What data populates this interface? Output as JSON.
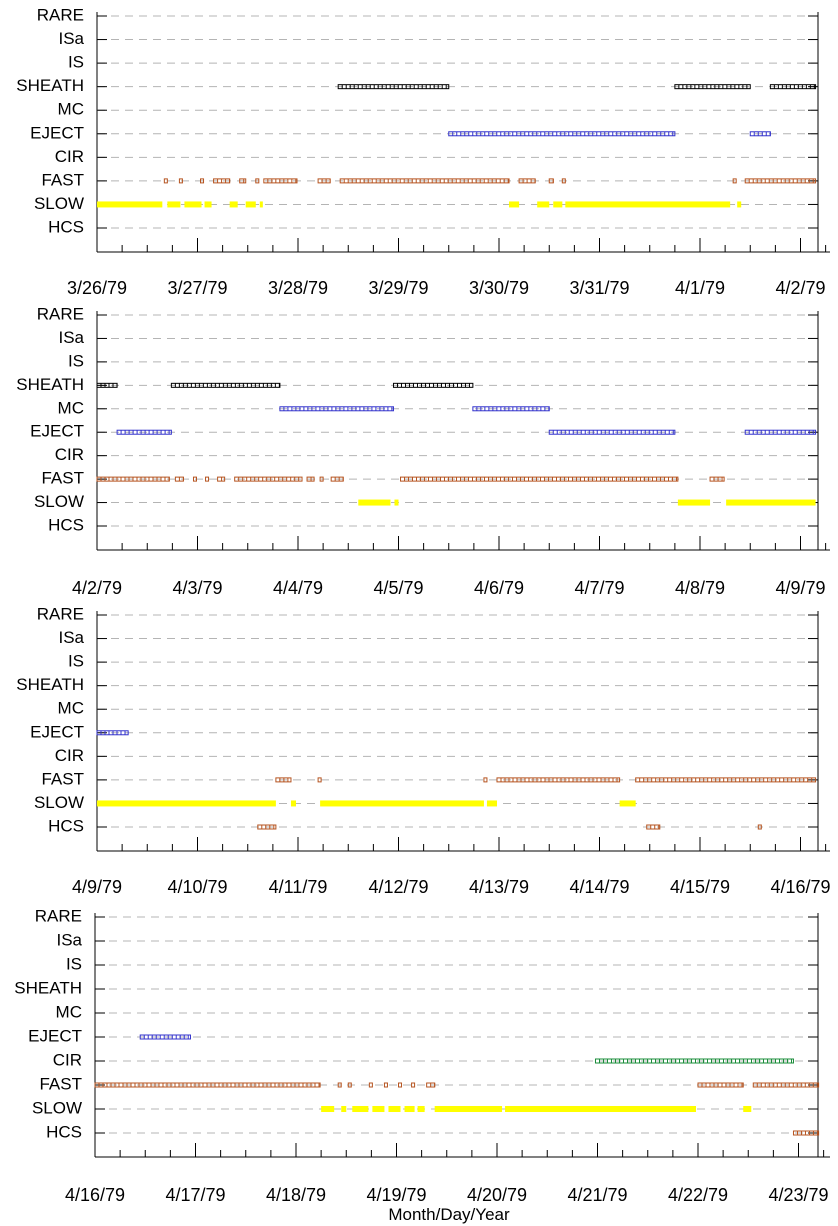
{
  "colors": {
    "SHEATH": "#000000",
    "EJECT": "#3333cc",
    "MC": "#3333cc",
    "FAST": "#b5531f",
    "HCS": "#b5531f",
    "CIR": "#1a8c3a",
    "SLOW": "#ffff00",
    "grid": "#b4b4b4",
    "axis": "#000000"
  },
  "chart_data": {
    "type": "timeline",
    "xlabel": "Month/Day/Year",
    "categories": [
      "RARE",
      "ISa",
      "IS",
      "SHEATH",
      "MC",
      "EJECT",
      "CIR",
      "FAST",
      "SLOW",
      "HCS"
    ],
    "panels": [
      {
        "start": "3/26/79",
        "date_labels": [
          "3/26/79",
          "3/27/79",
          "3/28/79",
          "3/29/79",
          "3/30/79",
          "3/31/79",
          "4/1/79",
          "4/2/79"
        ],
        "intervals": [
          {
            "cat": "SHEATH",
            "from": 2.4,
            "to": 3.5
          },
          {
            "cat": "SHEATH",
            "from": 5.75,
            "to": 6.5
          },
          {
            "cat": "SHEATH",
            "from": 6.7,
            "to": 7.15
          },
          {
            "cat": "EJECT",
            "from": 3.5,
            "to": 5.75
          },
          {
            "cat": "EJECT",
            "from": 6.5,
            "to": 6.7
          },
          {
            "cat": "FAST",
            "from": 0.67,
            "to": 0.69
          },
          {
            "cat": "FAST",
            "from": 0.82,
            "to": 0.84
          },
          {
            "cat": "FAST",
            "from": 1.03,
            "to": 1.06
          },
          {
            "cat": "FAST",
            "from": 1.16,
            "to": 1.32
          },
          {
            "cat": "FAST",
            "from": 1.42,
            "to": 1.48
          },
          {
            "cat": "FAST",
            "from": 1.58,
            "to": 1.61
          },
          {
            "cat": "FAST",
            "from": 1.66,
            "to": 1.99
          },
          {
            "cat": "FAST",
            "from": 2.2,
            "to": 2.32
          },
          {
            "cat": "FAST",
            "from": 2.42,
            "to": 4.1
          },
          {
            "cat": "FAST",
            "from": 4.2,
            "to": 4.36
          },
          {
            "cat": "FAST",
            "from": 4.5,
            "to": 4.54
          },
          {
            "cat": "FAST",
            "from": 4.63,
            "to": 4.66
          },
          {
            "cat": "FAST",
            "from": 6.33,
            "to": 6.36
          },
          {
            "cat": "FAST",
            "from": 6.45,
            "to": 7.15
          },
          {
            "cat": "SLOW",
            "from": 0.0,
            "to": 0.65
          },
          {
            "cat": "SLOW",
            "from": 0.7,
            "to": 0.83
          },
          {
            "cat": "SLOW",
            "from": 0.87,
            "to": 1.04
          },
          {
            "cat": "SLOW",
            "from": 1.07,
            "to": 1.14
          },
          {
            "cat": "SLOW",
            "from": 1.32,
            "to": 1.4
          },
          {
            "cat": "SLOW",
            "from": 1.48,
            "to": 1.58
          },
          {
            "cat": "SLOW",
            "from": 1.62,
            "to": 1.65
          },
          {
            "cat": "SLOW",
            "from": 4.1,
            "to": 4.2
          },
          {
            "cat": "SLOW",
            "from": 4.38,
            "to": 4.5
          },
          {
            "cat": "SLOW",
            "from": 4.54,
            "to": 4.63
          },
          {
            "cat": "SLOW",
            "from": 4.66,
            "to": 6.3
          },
          {
            "cat": "SLOW",
            "from": 6.37,
            "to": 6.41
          }
        ]
      },
      {
        "start": "4/2/79",
        "date_labels": [
          "4/2/79",
          "4/3/79",
          "4/4/79",
          "4/5/79",
          "4/6/79",
          "4/7/79",
          "4/8/79",
          "4/9/79"
        ],
        "intervals": [
          {
            "cat": "SHEATH",
            "from": 0.0,
            "to": 0.2
          },
          {
            "cat": "SHEATH",
            "from": 0.74,
            "to": 1.82
          },
          {
            "cat": "SHEATH",
            "from": 2.95,
            "to": 3.74
          },
          {
            "cat": "MC",
            "from": 1.82,
            "to": 2.95
          },
          {
            "cat": "MC",
            "from": 3.74,
            "to": 4.5
          },
          {
            "cat": "EJECT",
            "from": 0.2,
            "to": 0.74
          },
          {
            "cat": "EJECT",
            "from": 4.5,
            "to": 5.75
          },
          {
            "cat": "EJECT",
            "from": 6.45,
            "to": 7.15
          },
          {
            "cat": "FAST",
            "from": 0.0,
            "to": 0.72
          },
          {
            "cat": "FAST",
            "from": 0.78,
            "to": 0.86
          },
          {
            "cat": "FAST",
            "from": 0.96,
            "to": 0.99
          },
          {
            "cat": "FAST",
            "from": 1.08,
            "to": 1.11
          },
          {
            "cat": "FAST",
            "from": 1.2,
            "to": 1.27
          },
          {
            "cat": "FAST",
            "from": 1.37,
            "to": 2.04
          },
          {
            "cat": "FAST",
            "from": 2.09,
            "to": 2.16
          },
          {
            "cat": "FAST",
            "from": 2.22,
            "to": 2.25
          },
          {
            "cat": "FAST",
            "from": 2.33,
            "to": 2.45
          },
          {
            "cat": "FAST",
            "from": 3.02,
            "to": 5.78
          },
          {
            "cat": "FAST",
            "from": 6.1,
            "to": 6.24
          },
          {
            "cat": "SLOW",
            "from": 2.6,
            "to": 2.92
          },
          {
            "cat": "SLOW",
            "from": 2.96,
            "to": 3.0
          },
          {
            "cat": "SLOW",
            "from": 5.78,
            "to": 6.1
          },
          {
            "cat": "SLOW",
            "from": 6.26,
            "to": 7.15
          }
        ]
      },
      {
        "start": "4/9/79",
        "date_labels": [
          "4/9/79",
          "4/10/79",
          "4/11/79",
          "4/12/79",
          "4/13/79",
          "4/14/79",
          "4/15/79",
          "4/16/79"
        ],
        "intervals": [
          {
            "cat": "EJECT",
            "from": 0.0,
            "to": 0.31
          },
          {
            "cat": "FAST",
            "from": 1.78,
            "to": 1.93
          },
          {
            "cat": "FAST",
            "from": 2.2,
            "to": 2.23
          },
          {
            "cat": "FAST",
            "from": 3.85,
            "to": 3.88
          },
          {
            "cat": "FAST",
            "from": 3.98,
            "to": 5.2
          },
          {
            "cat": "FAST",
            "from": 5.36,
            "to": 7.15
          },
          {
            "cat": "SLOW",
            "from": 0.0,
            "to": 1.78
          },
          {
            "cat": "SLOW",
            "from": 1.93,
            "to": 1.98
          },
          {
            "cat": "SLOW",
            "from": 2.22,
            "to": 3.85
          },
          {
            "cat": "SLOW",
            "from": 3.88,
            "to": 3.98
          },
          {
            "cat": "SLOW",
            "from": 5.2,
            "to": 5.36
          },
          {
            "cat": "HCS",
            "from": 1.6,
            "to": 1.78
          },
          {
            "cat": "HCS",
            "from": 5.47,
            "to": 5.6
          },
          {
            "cat": "HCS",
            "from": 6.58,
            "to": 6.61
          }
        ]
      },
      {
        "start": "4/16/79",
        "date_labels": [
          "4/16/79",
          "4/17/79",
          "4/18/79",
          "4/19/79",
          "4/20/79",
          "4/21/79",
          "4/22/79",
          "4/23/79"
        ],
        "intervals": [
          {
            "cat": "EJECT",
            "from": 0.45,
            "to": 0.95
          },
          {
            "cat": "CIR",
            "from": 4.98,
            "to": 6.95
          },
          {
            "cat": "FAST",
            "from": 0.0,
            "to": 2.24
          },
          {
            "cat": "FAST",
            "from": 2.42,
            "to": 2.45
          },
          {
            "cat": "FAST",
            "from": 2.52,
            "to": 2.55
          },
          {
            "cat": "FAST",
            "from": 2.73,
            "to": 2.76
          },
          {
            "cat": "FAST",
            "from": 2.88,
            "to": 2.91
          },
          {
            "cat": "FAST",
            "from": 3.02,
            "to": 3.05
          },
          {
            "cat": "FAST",
            "from": 3.15,
            "to": 3.18
          },
          {
            "cat": "FAST",
            "from": 3.3,
            "to": 3.38
          },
          {
            "cat": "FAST",
            "from": 6.0,
            "to": 6.45
          },
          {
            "cat": "FAST",
            "from": 6.55,
            "to": 7.2
          },
          {
            "cat": "SLOW",
            "from": 2.25,
            "to": 2.38
          },
          {
            "cat": "SLOW",
            "from": 2.45,
            "to": 2.5
          },
          {
            "cat": "SLOW",
            "from": 2.56,
            "to": 2.72
          },
          {
            "cat": "SLOW",
            "from": 2.76,
            "to": 2.88
          },
          {
            "cat": "SLOW",
            "from": 2.92,
            "to": 3.04
          },
          {
            "cat": "SLOW",
            "from": 3.08,
            "to": 3.18
          },
          {
            "cat": "SLOW",
            "from": 3.21,
            "to": 3.28
          },
          {
            "cat": "SLOW",
            "from": 3.38,
            "to": 4.05
          },
          {
            "cat": "SLOW",
            "from": 4.08,
            "to": 5.98
          },
          {
            "cat": "SLOW",
            "from": 6.45,
            "to": 6.53
          },
          {
            "cat": "HCS",
            "from": 6.95,
            "to": 7.2
          }
        ]
      }
    ]
  }
}
